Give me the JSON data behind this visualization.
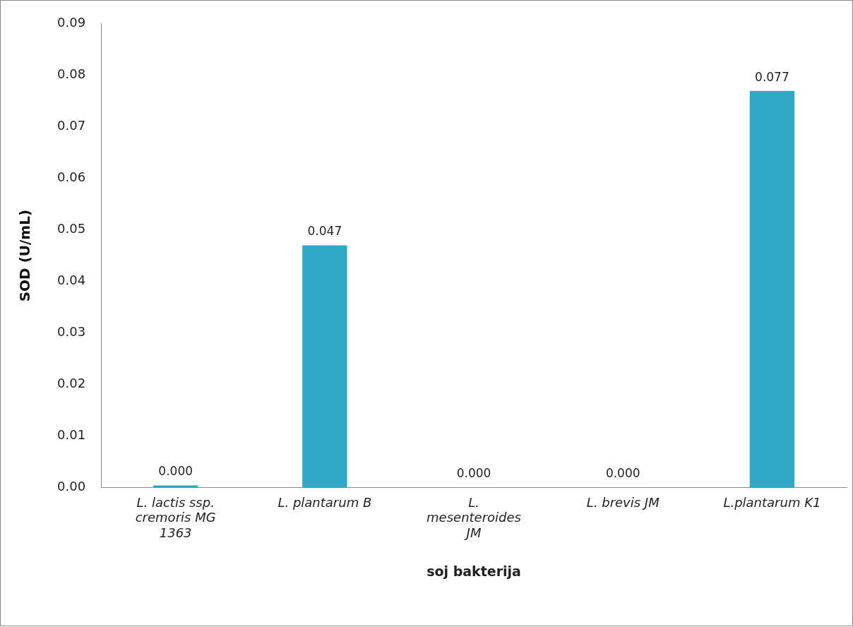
{
  "chart_data": {
    "type": "bar",
    "xlabel": "soj bakterija",
    "ylabel": "SOD (U/mL)",
    "categories": [
      "L. lactis ssp. cremoris MG 1363",
      "L. plantarum B",
      "L. mesenteroides JM",
      "L. brevis JM",
      "L.plantarum K1"
    ],
    "values": [
      0.0004,
      0.047,
      0,
      0,
      0.077
    ],
    "value_labels": [
      "0.000",
      "0.047",
      "0.000",
      "0.000",
      "0.077"
    ],
    "color": "#2fa8c8",
    "ylim": [
      0,
      0.09
    ],
    "yticks": [
      {
        "value": 0,
        "label": "0.00"
      },
      0.01,
      0.02,
      0.03,
      0.04,
      0.05,
      0.06,
      0.07,
      0.08,
      0.09
    ],
    "grid": false,
    "legend": false
  }
}
